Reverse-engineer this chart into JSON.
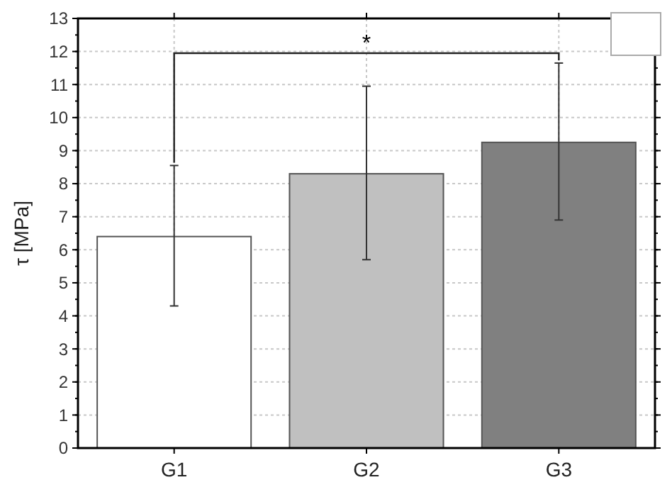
{
  "chart_data": {
    "type": "bar",
    "ylabel": "τ [MPa]",
    "categories": [
      "G1",
      "G2",
      "G3"
    ],
    "values": [
      6.4,
      8.3,
      9.25
    ],
    "colors": [
      "#ffffff",
      "#c0c0c0",
      "#808080"
    ],
    "errors": [
      [
        4.3,
        8.55
      ],
      [
        5.7,
        10.95
      ],
      [
        6.9,
        11.65
      ]
    ],
    "ylim": [
      0,
      13
    ],
    "yticks": [
      0,
      1,
      2,
      3,
      4,
      5,
      6,
      7,
      8,
      9,
      10,
      11,
      12,
      13
    ],
    "grid": true,
    "annotations": [
      "*"
    ]
  }
}
